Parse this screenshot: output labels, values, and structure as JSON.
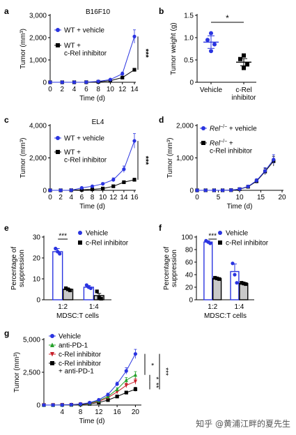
{
  "colors": {
    "blue": "#2a34e0",
    "black": "#000000",
    "green": "#25a02a",
    "red": "#c8202a",
    "gray": "#c8c8c8"
  },
  "watermark": "知乎 @黄浦江畔的夏先生",
  "chart_data": [
    {
      "panel": "a",
      "type": "line",
      "title": "B16F10",
      "xlabel": "Time (d)",
      "ylabel": "Tumor (mm³)",
      "x": [
        0,
        2,
        4,
        6,
        8,
        10,
        12,
        14
      ],
      "xticks": [
        "0",
        "2",
        "4",
        "6",
        "8",
        "10",
        "12",
        "14"
      ],
      "xlim": [
        0,
        14
      ],
      "ylim": [
        0,
        3000
      ],
      "yticks": [
        0,
        1000,
        2000,
        3000
      ],
      "ytick_labels": [
        "0",
        "1,000",
        "2,000",
        "3,000"
      ],
      "series": [
        {
          "name": "WT + vehicle",
          "marker": "circle",
          "color": "#2a34e0",
          "values": [
            0,
            0,
            0,
            5,
            40,
            120,
            380,
            2050
          ],
          "errors": [
            0,
            0,
            0,
            5,
            15,
            30,
            80,
            300
          ]
        },
        {
          "name": "WT + c-Rel inhibitor",
          "marker": "square",
          "color": "#000000",
          "values": [
            0,
            0,
            0,
            3,
            20,
            70,
            210,
            560
          ],
          "errors": [
            0,
            0,
            0,
            3,
            10,
            20,
            40,
            60
          ]
        }
      ],
      "significance": "***"
    },
    {
      "panel": "b",
      "type": "scatter",
      "title": "",
      "ylabel": "Tumor weight (g)",
      "categories": [
        "Vehicle",
        "c-Rel inhibitor"
      ],
      "ylim": [
        0,
        1.5
      ],
      "yticks": [
        0,
        0.5,
        1.0,
        1.5
      ],
      "ytick_labels": [
        "0",
        "0.5",
        "1.0",
        "1.5"
      ],
      "groups": [
        {
          "name": "Vehicle",
          "marker": "circle",
          "color": "#2a34e0",
          "mean": 0.9,
          "sem": 0.14,
          "points": [
            1.1,
            0.95,
            0.85,
            0.7
          ]
        },
        {
          "name": "c-Rel inhibitor",
          "marker": "square",
          "color": "#000000",
          "mean": 0.45,
          "sem": 0.08,
          "points": [
            0.6,
            0.52,
            0.4,
            0.32
          ]
        }
      ],
      "significance": "*"
    },
    {
      "panel": "c",
      "type": "line",
      "title": "EL4",
      "xlabel": "Time (d)",
      "ylabel": "Tumor (mm³)",
      "x": [
        0,
        2,
        4,
        6,
        8,
        10,
        12,
        14,
        16
      ],
      "xticks": [
        "0",
        "2",
        "4",
        "6",
        "8",
        "10",
        "12",
        "14",
        "16"
      ],
      "xlim": [
        0,
        16
      ],
      "ylim": [
        0,
        4000
      ],
      "yticks": [
        0,
        2000,
        4000
      ],
      "ytick_labels": [
        "0",
        "2,000",
        "4,000"
      ],
      "series": [
        {
          "name": "WT + vehicle",
          "marker": "circle",
          "color": "#2a34e0",
          "values": [
            0,
            0,
            5,
            150,
            250,
            400,
            650,
            1300,
            3050
          ],
          "errors": [
            0,
            0,
            5,
            40,
            60,
            80,
            120,
            200,
            450
          ]
        },
        {
          "name": "WT + c-Rel inhibitor",
          "marker": "square",
          "color": "#000000",
          "values": [
            0,
            0,
            5,
            30,
            60,
            110,
            250,
            500,
            650
          ],
          "errors": [
            0,
            0,
            5,
            10,
            20,
            30,
            50,
            80,
            100
          ]
        }
      ],
      "significance": "***"
    },
    {
      "panel": "d",
      "type": "line",
      "title": "",
      "xlabel": "Time (d)",
      "ylabel": "Tumor (mm³)",
      "x": [
        0,
        2,
        4,
        6,
        8,
        10,
        12,
        14,
        16,
        18
      ],
      "xticks": [
        "0",
        "5",
        "10",
        "15",
        "20"
      ],
      "xtick_values": [
        0,
        5,
        10,
        15,
        20
      ],
      "xlim": [
        0,
        20
      ],
      "ylim": [
        0,
        2000
      ],
      "yticks": [
        0,
        1000,
        2000
      ],
      "ytick_labels": [
        "0",
        "1,000",
        "2,000"
      ],
      "series": [
        {
          "name_main": "Rel",
          "name_sup": "−/−",
          "name_rest": " + vehicle",
          "marker": "circle",
          "color": "#2a34e0",
          "values": [
            0,
            0,
            0,
            0,
            5,
            40,
            120,
            300,
            600,
            950
          ],
          "errors": [
            0,
            0,
            0,
            0,
            5,
            10,
            30,
            60,
            100,
            150
          ]
        },
        {
          "name_main": "Rel",
          "name_sup": "−/−",
          "name_rest": " +",
          "name_line2": "c-Rel inhibitor",
          "marker": "square",
          "color": "#000000",
          "values": [
            0,
            0,
            0,
            0,
            5,
            35,
            110,
            280,
            580,
            900
          ],
          "errors": [
            0,
            0,
            0,
            0,
            5,
            10,
            30,
            60,
            100,
            150
          ]
        }
      ]
    },
    {
      "panel": "e",
      "type": "bar",
      "title": "",
      "xlabel": "MDSC:T cells",
      "ylabel": "Percentage of suppression",
      "categories": [
        "1:2",
        "1:4"
      ],
      "ylim": [
        0,
        30
      ],
      "yticks": [
        0,
        10,
        20,
        30
      ],
      "ytick_labels": [
        "0",
        "10",
        "20",
        "30"
      ],
      "series": [
        {
          "name": "Vehicle",
          "marker": "circle",
          "color": "#2a34e0",
          "fill": "#ffffff",
          "values": [
            23,
            6
          ],
          "errors": [
            1.5,
            0.8
          ],
          "points": [
            [
              24.5,
              23,
              22
            ],
            [
              7,
              6,
              5.5
            ]
          ]
        },
        {
          "name": "c-Rel inhibitor",
          "marker": "square",
          "color": "#000000",
          "fill": "#c8c8c8",
          "values": [
            5,
            2
          ],
          "errors": [
            0.5,
            1.0
          ],
          "points": [
            [
              5.5,
              5,
              4.5
            ],
            [
              4,
              1,
              0.5
            ]
          ]
        }
      ],
      "significance": "***"
    },
    {
      "panel": "f",
      "type": "bar",
      "title": "",
      "xlabel": "MDSC:T cells",
      "ylabel": "Percentage of suppression",
      "categories": [
        "1:2",
        "1:4"
      ],
      "ylim": [
        0,
        100
      ],
      "yticks": [
        0,
        20,
        40,
        60,
        80,
        100
      ],
      "ytick_labels": [
        "0",
        "20",
        "40",
        "60",
        "80",
        "100"
      ],
      "series": [
        {
          "name": "Vehicle",
          "marker": "circle",
          "color": "#2a34e0",
          "fill": "#ffffff",
          "values": [
            92,
            45
          ],
          "errors": [
            2,
            12
          ],
          "points": [
            [
              94,
              92,
              90
            ],
            [
              58,
              40,
              27
            ]
          ]
        },
        {
          "name": "c-Rel inhibitor",
          "marker": "square",
          "color": "#000000",
          "fill": "#c8c8c8",
          "values": [
            34,
            26
          ],
          "errors": [
            1,
            1
          ],
          "points": [
            [
              35,
              34,
              33
            ],
            [
              27,
              26,
              25
            ]
          ]
        }
      ],
      "significance": "***"
    },
    {
      "panel": "g",
      "type": "line",
      "title": "",
      "xlabel": "Time (d)",
      "ylabel": "Tumor (mm³)",
      "x": [
        0,
        2,
        4,
        6,
        8,
        10,
        12,
        14,
        16,
        18,
        20
      ],
      "xticks": [
        "4",
        "8",
        "12",
        "16",
        "20"
      ],
      "xtick_values": [
        4,
        8,
        12,
        16,
        20
      ],
      "xlim": [
        0,
        21
      ],
      "ylim": [
        0,
        5000
      ],
      "yticks": [
        0,
        2500,
        5000
      ],
      "ytick_labels": [
        "0",
        "2,500",
        "5,000"
      ],
      "series": [
        {
          "name": "Vehicle",
          "marker": "circle",
          "color": "#2a34e0",
          "values": [
            0,
            0,
            5,
            30,
            80,
            180,
            400,
            800,
            1600,
            2600,
            3900
          ],
          "errors": [
            0,
            0,
            5,
            10,
            20,
            40,
            60,
            100,
            150,
            250,
            350
          ]
        },
        {
          "name": "anti-PD-1",
          "marker": "triangle",
          "color": "#25a02a",
          "values": [
            0,
            0,
            5,
            25,
            70,
            150,
            330,
            650,
            1200,
            1900,
            2300
          ],
          "errors": [
            0,
            0,
            5,
            10,
            20,
            30,
            50,
            80,
            120,
            200,
            250
          ]
        },
        {
          "name": "c-Rel inhibitor",
          "marker": "triangle-down",
          "color": "#c8202a",
          "values": [
            0,
            0,
            5,
            20,
            60,
            130,
            280,
            560,
            1000,
            1500,
            1800
          ],
          "errors": [
            0,
            0,
            5,
            10,
            15,
            30,
            50,
            80,
            120,
            180,
            220
          ]
        },
        {
          "name": "c-Rel inhibitor + anti-PD-1",
          "marker": "square",
          "color": "#000000",
          "values": [
            0,
            0,
            5,
            15,
            40,
            90,
            190,
            380,
            650,
            950,
            1200
          ],
          "errors": [
            0,
            0,
            5,
            5,
            10,
            20,
            30,
            50,
            80,
            120,
            150
          ]
        }
      ],
      "significance_brackets": [
        "*",
        "*",
        "**",
        "***"
      ]
    }
  ]
}
